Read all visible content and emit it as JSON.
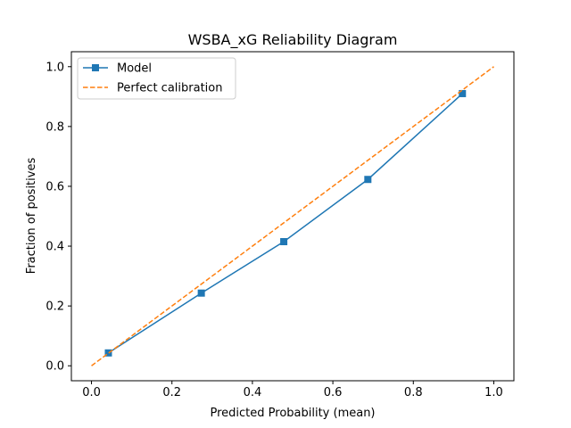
{
  "chart_data": {
    "type": "line",
    "title": "WSBA_xG Reliability Diagram",
    "xlabel": "Predicted Probability (mean)",
    "ylabel": "Fraction of positives",
    "xlim": [
      -0.05,
      1.05
    ],
    "ylim": [
      -0.05,
      1.05
    ],
    "xticks": [
      "0.0",
      "0.2",
      "0.4",
      "0.6",
      "0.8",
      "1.0"
    ],
    "yticks": [
      "0.0",
      "0.2",
      "0.4",
      "0.6",
      "0.8",
      "1.0"
    ],
    "grid": false,
    "legend_position": "top-left",
    "series": [
      {
        "name": "Model",
        "color": "#1f77b4",
        "style": "solid",
        "marker": "square",
        "x": [
          0.042,
          0.273,
          0.478,
          0.687,
          0.922
        ],
        "y": [
          0.043,
          0.243,
          0.415,
          0.623,
          0.91
        ]
      },
      {
        "name": "Perfect calibration",
        "color": "#ff7f0e",
        "style": "dashed",
        "marker": "none",
        "x": [
          0.0,
          1.0
        ],
        "y": [
          0.0,
          1.0
        ]
      }
    ]
  }
}
